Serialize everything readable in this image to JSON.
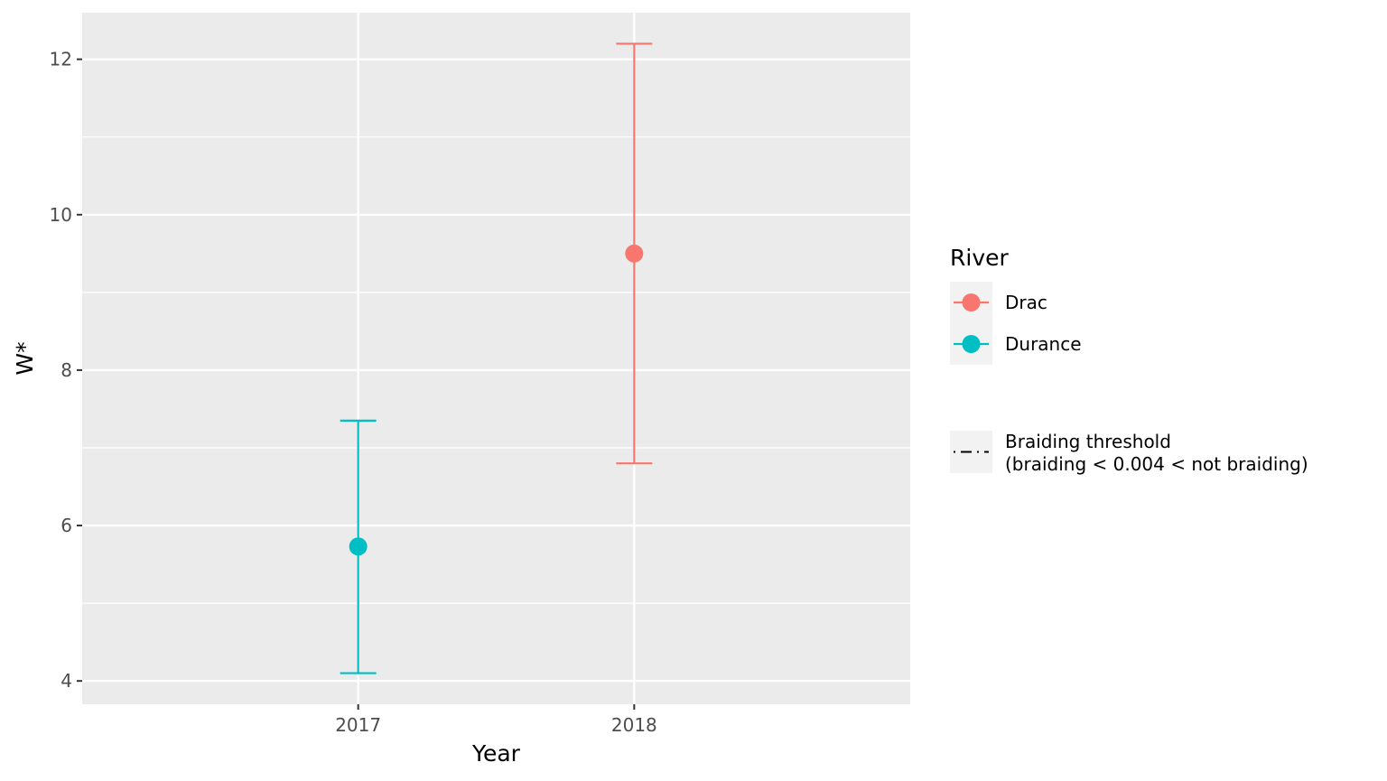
{
  "chart_data": {
    "type": "scatter",
    "title": "",
    "xlabel": "Year",
    "ylabel": "W*",
    "x_categories": [
      "2017",
      "2018"
    ],
    "ylim": [
      3.7,
      12.6
    ],
    "y_ticks": [
      4,
      6,
      8,
      10,
      12
    ],
    "grid": true,
    "legend_position": "right",
    "legend_title": "River",
    "series": [
      {
        "name": "Drac",
        "color": "#F8766D",
        "points": [
          {
            "x": "2018",
            "y": 9.5,
            "ymin": 6.8,
            "ymax": 12.2
          }
        ]
      },
      {
        "name": "Durance",
        "color": "#00BFC4",
        "points": [
          {
            "x": "2017",
            "y": 5.73,
            "ymin": 4.1,
            "ymax": 7.35
          }
        ]
      }
    ],
    "threshold_legend": {
      "label_line1": "Braiding threshold",
      "label_line2": "(braiding < 0.004 < not braiding)",
      "linetype": "dotdash"
    }
  },
  "colors": {
    "panel_background": "#EBEBEB",
    "grid": "#FFFFFF",
    "legend_key_background": "#F2F2F2"
  }
}
